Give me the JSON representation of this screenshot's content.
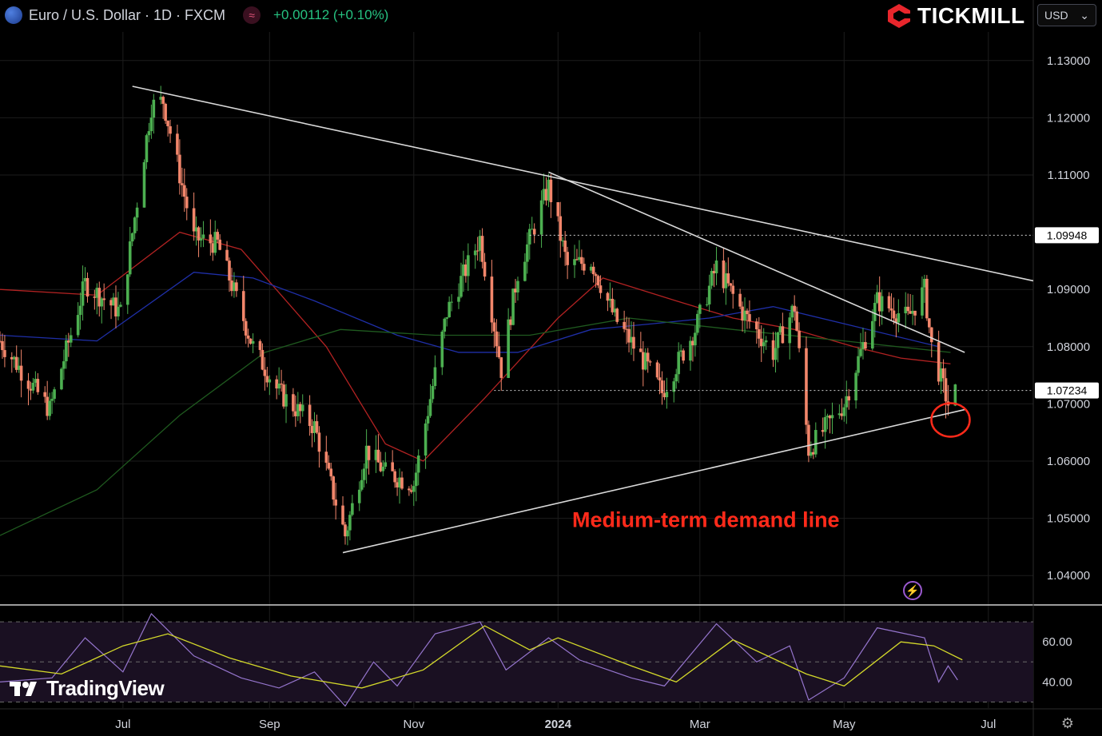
{
  "header": {
    "symbol_icon": "euro-us-flag-icon",
    "title": "Euro / U.S. Dollar · 1D · FXCM",
    "indicator_icon": "wave-icon",
    "change": "+0.00112 (+0.10%)"
  },
  "brand": {
    "name": "TICKMILL",
    "color": "#e8262c"
  },
  "currency_select": {
    "value": "USD"
  },
  "footer": {
    "tradingview": "TradingView"
  },
  "colors": {
    "up": "#26a69a",
    "down": "#ef5350",
    "candle_up": "#4caf50",
    "candle_down": "#f2866b",
    "ma_red": "#b22222",
    "ma_blue": "#1f2fa8",
    "ma_green": "#1f5a1f",
    "rsi_line": "#9575cd",
    "rsi_ma": "#d4d92a",
    "annotation": "#ff2a1a"
  },
  "chart_data": [
    {
      "type": "candlestick",
      "ylim": [
        1.035,
        1.135
      ],
      "y_ticks": [
        "1.13000",
        "1.12000",
        "1.11000",
        "1.09000",
        "1.08000",
        "1.07000",
        "1.06000",
        "1.05000",
        "1.04000"
      ],
      "x_ticks": [
        {
          "label": "Jul",
          "date": "2023-07-01"
        },
        {
          "label": "Sep",
          "date": "2023-09-01"
        },
        {
          "label": "Nov",
          "date": "2023-11-01"
        },
        {
          "label": "2024",
          "date": "2024-01-01",
          "bold": true
        },
        {
          "label": "Mar",
          "date": "2024-03-01"
        },
        {
          "label": "May",
          "date": "2024-05-01"
        },
        {
          "label": "Jul",
          "date": "2024-07-01"
        }
      ],
      "x_range": [
        "2023-05-10",
        "2024-07-20"
      ],
      "price_levels": [
        {
          "label": "1.09948",
          "value": 1.09948,
          "from": "2023-12-20"
        },
        {
          "label": "1.07234",
          "value": 1.07234,
          "from": "2023-12-05"
        }
      ],
      "close_path": [
        {
          "date": "2023-05-10",
          "value": 1.081
        },
        {
          "date": "2023-05-31",
          "value": 1.069
        },
        {
          "date": "2023-06-15",
          "value": 1.091
        },
        {
          "date": "2023-06-30",
          "value": 1.086
        },
        {
          "date": "2023-07-13",
          "value": 1.122
        },
        {
          "date": "2023-07-18",
          "value": 1.123
        },
        {
          "date": "2023-07-31",
          "value": 1.099
        },
        {
          "date": "2023-08-10",
          "value": 1.098
        },
        {
          "date": "2023-08-25",
          "value": 1.08
        },
        {
          "date": "2023-09-05",
          "value": 1.072
        },
        {
          "date": "2023-09-20",
          "value": 1.066
        },
        {
          "date": "2023-10-03",
          "value": 1.047
        },
        {
          "date": "2023-10-12",
          "value": 1.062
        },
        {
          "date": "2023-10-20",
          "value": 1.058
        },
        {
          "date": "2023-11-01",
          "value": 1.056
        },
        {
          "date": "2023-11-15",
          "value": 1.086
        },
        {
          "date": "2023-11-29",
          "value": 1.099
        },
        {
          "date": "2023-12-08",
          "value": 1.076
        },
        {
          "date": "2023-12-15",
          "value": 1.093
        },
        {
          "date": "2023-12-28",
          "value": 1.108
        },
        {
          "date": "2024-01-05",
          "value": 1.094
        },
        {
          "date": "2024-01-15",
          "value": 1.095
        },
        {
          "date": "2024-01-25",
          "value": 1.085
        },
        {
          "date": "2024-02-07",
          "value": 1.077
        },
        {
          "date": "2024-02-14",
          "value": 1.072
        },
        {
          "date": "2024-02-28",
          "value": 1.083
        },
        {
          "date": "2024-03-08",
          "value": 1.094
        },
        {
          "date": "2024-03-19",
          "value": 1.086
        },
        {
          "date": "2024-04-01",
          "value": 1.079
        },
        {
          "date": "2024-04-10",
          "value": 1.087
        },
        {
          "date": "2024-04-16",
          "value": 1.062
        },
        {
          "date": "2024-05-01",
          "value": 1.07
        },
        {
          "date": "2024-05-15",
          "value": 1.088
        },
        {
          "date": "2024-05-28",
          "value": 1.085
        },
        {
          "date": "2024-06-04",
          "value": 1.09
        },
        {
          "date": "2024-06-07",
          "value": 1.08
        },
        {
          "date": "2024-06-14",
          "value": 1.07
        },
        {
          "date": "2024-06-17",
          "value": 1.072
        }
      ],
      "moving_averages": [
        {
          "color": "#b22222",
          "points": [
            [
              "2023-05-10",
              1.09
            ],
            [
              "2023-06-20",
              1.089
            ],
            [
              "2023-07-25",
              1.1
            ],
            [
              "2023-08-20",
              1.097
            ],
            [
              "2023-09-25",
              1.08
            ],
            [
              "2023-10-20",
              1.063
            ],
            [
              "2023-11-05",
              1.06
            ],
            [
              "2023-12-01",
              1.071
            ],
            [
              "2024-01-01",
              1.085
            ],
            [
              "2024-01-20",
              1.092
            ],
            [
              "2024-02-20",
              1.088
            ],
            [
              "2024-03-15",
              1.085
            ],
            [
              "2024-04-10",
              1.083
            ],
            [
              "2024-05-05",
              1.08
            ],
            [
              "2024-05-25",
              1.078
            ],
            [
              "2024-06-15",
              1.077
            ]
          ]
        },
        {
          "color": "#1f2fa8",
          "points": [
            [
              "2023-05-10",
              1.082
            ],
            [
              "2023-06-20",
              1.081
            ],
            [
              "2023-07-31",
              1.093
            ],
            [
              "2023-08-25",
              1.092
            ],
            [
              "2023-09-20",
              1.088
            ],
            [
              "2023-10-25",
              1.082
            ],
            [
              "2023-11-20",
              1.079
            ],
            [
              "2023-12-15",
              1.079
            ],
            [
              "2024-01-15",
              1.083
            ],
            [
              "2024-02-10",
              1.084
            ],
            [
              "2024-03-05",
              1.085
            ],
            [
              "2024-04-01",
              1.087
            ],
            [
              "2024-05-01",
              1.084
            ],
            [
              "2024-06-10",
              1.08
            ]
          ]
        },
        {
          "color": "#1f5a1f",
          "points": [
            [
              "2023-05-10",
              1.047
            ],
            [
              "2023-06-20",
              1.055
            ],
            [
              "2023-07-25",
              1.068
            ],
            [
              "2023-08-30",
              1.079
            ],
            [
              "2023-10-01",
              1.083
            ],
            [
              "2023-11-10",
              1.082
            ],
            [
              "2023-12-20",
              1.082
            ],
            [
              "2024-01-31",
              1.085
            ],
            [
              "2024-03-15",
              1.083
            ],
            [
              "2024-05-01",
              1.081
            ],
            [
              "2024-06-15",
              1.079
            ]
          ]
        }
      ],
      "trendlines": [
        {
          "color": "#d9d9d9",
          "from": [
            "2023-07-05",
            1.1255
          ],
          "to": [
            "2024-07-20",
            1.0915
          ]
        },
        {
          "color": "#d9d9d9",
          "from": [
            "2023-12-28",
            1.1105
          ],
          "to": [
            "2024-06-21",
            1.079
          ]
        },
        {
          "color": "#d9d9d9",
          "from": [
            "2023-10-02",
            1.044
          ],
          "to": [
            "2024-06-21",
            1.069
          ]
        }
      ],
      "annotation": {
        "text": "Medium-term demand line",
        "date": "2024-01-07",
        "value": 1.0485
      },
      "highlight": {
        "date": "2024-06-14",
        "value": 1.0672
      }
    },
    {
      "type": "line",
      "ylim": [
        27,
        78
      ],
      "y_ticks": [
        "60.00",
        "40.00"
      ],
      "dashed_levels": [
        70,
        50,
        30
      ],
      "rsi_path": [
        {
          "date": "2023-05-10",
          "value": 40
        },
        {
          "date": "2023-06-01",
          "value": 42
        },
        {
          "date": "2023-06-15",
          "value": 62
        },
        {
          "date": "2023-07-01",
          "value": 45
        },
        {
          "date": "2023-07-13",
          "value": 74
        },
        {
          "date": "2023-07-31",
          "value": 53
        },
        {
          "date": "2023-08-20",
          "value": 42
        },
        {
          "date": "2023-09-05",
          "value": 37
        },
        {
          "date": "2023-09-20",
          "value": 45
        },
        {
          "date": "2023-10-03",
          "value": 28
        },
        {
          "date": "2023-10-15",
          "value": 50
        },
        {
          "date": "2023-10-25",
          "value": 38
        },
        {
          "date": "2023-11-10",
          "value": 64
        },
        {
          "date": "2023-11-29",
          "value": 70
        },
        {
          "date": "2023-12-10",
          "value": 46
        },
        {
          "date": "2023-12-28",
          "value": 62
        },
        {
          "date": "2024-01-10",
          "value": 51
        },
        {
          "date": "2024-02-01",
          "value": 42
        },
        {
          "date": "2024-02-15",
          "value": 38
        },
        {
          "date": "2024-03-08",
          "value": 69
        },
        {
          "date": "2024-03-25",
          "value": 50
        },
        {
          "date": "2024-04-08",
          "value": 58
        },
        {
          "date": "2024-04-16",
          "value": 31
        },
        {
          "date": "2024-05-01",
          "value": 42
        },
        {
          "date": "2024-05-15",
          "value": 67
        },
        {
          "date": "2024-06-04",
          "value": 62
        },
        {
          "date": "2024-06-10",
          "value": 40
        },
        {
          "date": "2024-06-14",
          "value": 48
        },
        {
          "date": "2024-06-18",
          "value": 41
        }
      ],
      "rsi_ma_path": [
        {
          "date": "2023-05-10",
          "value": 48
        },
        {
          "date": "2023-06-05",
          "value": 44
        },
        {
          "date": "2023-07-01",
          "value": 58
        },
        {
          "date": "2023-07-20",
          "value": 64
        },
        {
          "date": "2023-08-15",
          "value": 52
        },
        {
          "date": "2023-09-10",
          "value": 43
        },
        {
          "date": "2023-10-10",
          "value": 37
        },
        {
          "date": "2023-11-05",
          "value": 46
        },
        {
          "date": "2023-12-01",
          "value": 68
        },
        {
          "date": "2023-12-20",
          "value": 56
        },
        {
          "date": "2024-01-01",
          "value": 62
        },
        {
          "date": "2024-02-01",
          "value": 48
        },
        {
          "date": "2024-02-20",
          "value": 40
        },
        {
          "date": "2024-03-15",
          "value": 61
        },
        {
          "date": "2024-04-15",
          "value": 44
        },
        {
          "date": "2024-05-01",
          "value": 38
        },
        {
          "date": "2024-05-25",
          "value": 60
        },
        {
          "date": "2024-06-08",
          "value": 58
        },
        {
          "date": "2024-06-20",
          "value": 51
        }
      ]
    }
  ]
}
